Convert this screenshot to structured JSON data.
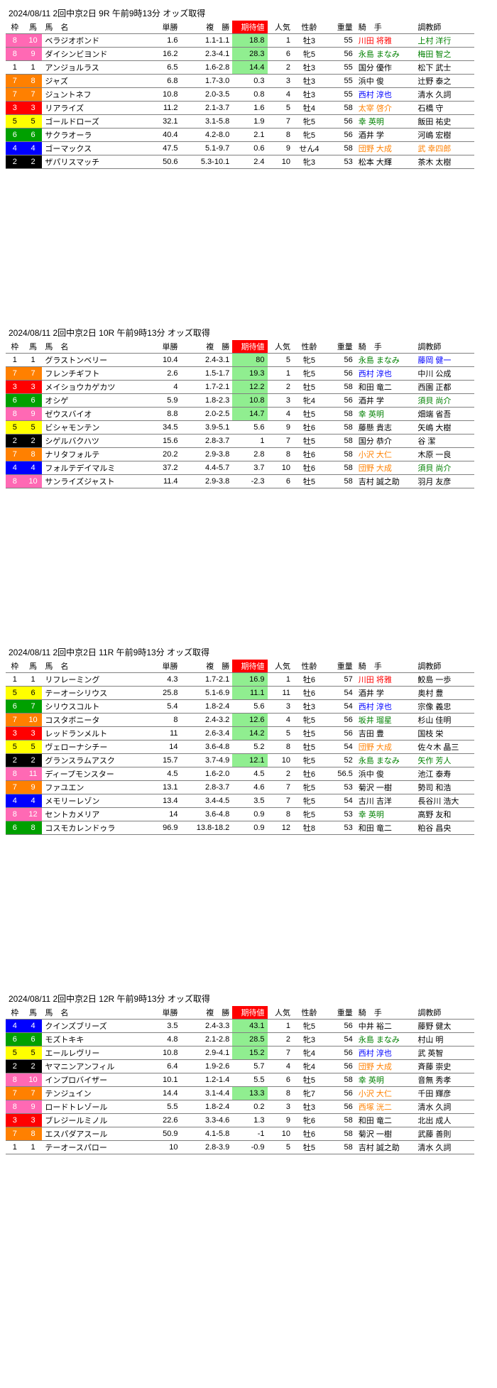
{
  "headers": {
    "waku": "枠",
    "uma": "馬",
    "name": "馬　名",
    "tansho": "単勝",
    "fuku": "複　勝",
    "exp": "期待値",
    "ninki": "人気",
    "seirei": "性齢",
    "juryo": "重量",
    "kishu": "騎　手",
    "chokyoshi": "調教師"
  },
  "races": [
    {
      "title": "2024/08/11  2回中京2日   9R   午前9時13分 オッズ取得",
      "rows": [
        {
          "waku": 8,
          "uma": 10,
          "name": "ベラジオボンド",
          "tansho": "1.6",
          "fuku": "1.1-1.1",
          "exp": "18.8",
          "ninki": 1,
          "seirei": "牡3",
          "juryo": 55,
          "kishu": "川田 将雅",
          "kcol": "name-red",
          "cho": "上村 洋行",
          "ccol": "name-green",
          "eg": 1
        },
        {
          "waku": 8,
          "uma": 9,
          "name": "ダイシンビヨンド",
          "tansho": "16.2",
          "fuku": "2.3-4.1",
          "exp": "28.3",
          "ninki": 6,
          "seirei": "牝5",
          "juryo": 56,
          "kishu": "永島 まなみ",
          "kcol": "name-green",
          "cho": "梅田 智之",
          "ccol": "name-green",
          "eg": 1
        },
        {
          "waku": 1,
          "uma": 1,
          "name": "アンジョルラス",
          "tansho": "6.5",
          "fuku": "1.6-2.8",
          "exp": "14.4",
          "ninki": 2,
          "seirei": "牡3",
          "juryo": 55,
          "kishu": "国分 優作",
          "cho": "松下 武士",
          "eg": 1
        },
        {
          "waku": 7,
          "uma": 8,
          "name": "ジャズ",
          "tansho": "6.8",
          "fuku": "1.7-3.0",
          "exp": "0.3",
          "ninki": 3,
          "seirei": "牡3",
          "juryo": 55,
          "kishu": "浜中 俊",
          "cho": "辻野 泰之"
        },
        {
          "waku": 7,
          "uma": 7,
          "name": "ジュントネフ",
          "tansho": "10.8",
          "fuku": "2.0-3.5",
          "exp": "0.8",
          "ninki": 4,
          "seirei": "牡3",
          "juryo": 55,
          "kishu": "西村 淳也",
          "kcol": "name-blue",
          "cho": "清水 久詞"
        },
        {
          "waku": 3,
          "uma": 3,
          "name": "リアライズ",
          "tansho": "11.2",
          "fuku": "2.1-3.7",
          "exp": "1.6",
          "ninki": 5,
          "seirei": "牡4",
          "juryo": 58,
          "kishu": "太宰 啓介",
          "kcol": "name-orange",
          "cho": "石橋 守"
        },
        {
          "waku": 5,
          "uma": 5,
          "name": "ゴールドローズ",
          "tansho": "32.1",
          "fuku": "3.1-5.8",
          "exp": "1.9",
          "ninki": 7,
          "seirei": "牝5",
          "juryo": 56,
          "kishu": "幸 英明",
          "kcol": "name-green",
          "cho": "飯田 祐史"
        },
        {
          "waku": 6,
          "uma": 6,
          "name": "サクラオーラ",
          "tansho": "40.4",
          "fuku": "4.2-8.0",
          "exp": "2.1",
          "ninki": 8,
          "seirei": "牝5",
          "juryo": 56,
          "kishu": "酒井 学",
          "cho": "河嶋 宏樹"
        },
        {
          "waku": 4,
          "uma": 4,
          "name": "ゴーマックス",
          "tansho": "47.5",
          "fuku": "5.1-9.7",
          "exp": "0.6",
          "ninki": 9,
          "seirei": "せん4",
          "juryo": 58,
          "kishu": "団野 大成",
          "kcol": "name-orange",
          "cho": "武 幸四郎",
          "ccol": "name-orange"
        },
        {
          "waku": 2,
          "uma": 2,
          "name": "ザパリスマッチ",
          "tansho": "50.6",
          "fuku": "5.3-10.1",
          "exp": "2.4",
          "ninki": 10,
          "seirei": "牝3",
          "juryo": 53,
          "kishu": "松本 大輝",
          "cho": "茶木 太樹"
        }
      ]
    },
    {
      "title": "2024/08/11  2回中京2日   10R   午前9時13分 オッズ取得",
      "rows": [
        {
          "waku": 1,
          "uma": 1,
          "name": "グラストンベリー",
          "tansho": "10.4",
          "fuku": "2.4-3.1",
          "exp": "80",
          "ninki": 5,
          "seirei": "牝5",
          "juryo": 56,
          "kishu": "永島 まなみ",
          "kcol": "name-green",
          "cho": "藤岡 健一",
          "ccol": "name-blue",
          "eg": 1
        },
        {
          "waku": 7,
          "uma": 7,
          "name": "フレンチギフト",
          "tansho": "2.6",
          "fuku": "1.5-1.7",
          "exp": "19.3",
          "ninki": 1,
          "seirei": "牝5",
          "juryo": 56,
          "kishu": "西村 淳也",
          "kcol": "name-blue",
          "cho": "中川 公成",
          "eg": 1
        },
        {
          "waku": 3,
          "uma": 3,
          "name": "メイショウカゲカツ",
          "tansho": "4",
          "fuku": "1.7-2.1",
          "exp": "12.2",
          "ninki": 2,
          "seirei": "牡5",
          "juryo": 58,
          "kishu": "和田 竜二",
          "cho": "西園 正都",
          "eg": 1
        },
        {
          "waku": 6,
          "uma": 6,
          "name": "オシゲ",
          "tansho": "5.9",
          "fuku": "1.8-2.3",
          "exp": "10.8",
          "ninki": 3,
          "seirei": "牝4",
          "juryo": 56,
          "kishu": "酒井 学",
          "cho": "須貝 尚介",
          "ccol": "name-green",
          "eg": 1
        },
        {
          "waku": 8,
          "uma": 9,
          "name": "ゼウスバイオ",
          "tansho": "8.8",
          "fuku": "2.0-2.5",
          "exp": "14.7",
          "ninki": 4,
          "seirei": "牡5",
          "juryo": 58,
          "kishu": "幸 英明",
          "kcol": "name-green",
          "cho": "畑端 省吾",
          "eg": 1
        },
        {
          "waku": 5,
          "uma": 5,
          "name": "ビシャモンテン",
          "tansho": "34.5",
          "fuku": "3.9-5.1",
          "exp": "5.6",
          "ninki": 9,
          "seirei": "牡6",
          "juryo": 58,
          "kishu": "藤懸 貴志",
          "cho": "矢嶋 大樹"
        },
        {
          "waku": 2,
          "uma": 2,
          "name": "シゲルバクハツ",
          "tansho": "15.6",
          "fuku": "2.8-3.7",
          "exp": "1",
          "ninki": 7,
          "seirei": "牡5",
          "juryo": 58,
          "kishu": "国分 恭介",
          "cho": "谷 潔"
        },
        {
          "waku": 7,
          "uma": 8,
          "name": "ナリタフォルテ",
          "tansho": "20.2",
          "fuku": "2.9-3.8",
          "exp": "2.8",
          "ninki": 8,
          "seirei": "牡6",
          "juryo": 58,
          "kishu": "小沢 大仁",
          "kcol": "name-orange",
          "cho": "木原 一良"
        },
        {
          "waku": 4,
          "uma": 4,
          "name": "フォルテデイマルミ",
          "tansho": "37.2",
          "fuku": "4.4-5.7",
          "exp": "3.7",
          "ninki": 10,
          "seirei": "牡6",
          "juryo": 58,
          "kishu": "団野 大成",
          "kcol": "name-orange",
          "cho": "須貝 尚介",
          "ccol": "name-green"
        },
        {
          "waku": 8,
          "uma": 10,
          "name": "サンライズジャスト",
          "tansho": "11.4",
          "fuku": "2.9-3.8",
          "exp": "-2.3",
          "ninki": 6,
          "seirei": "牡5",
          "juryo": 58,
          "kishu": "吉村 誠之助",
          "cho": "羽月 友彦"
        }
      ]
    },
    {
      "title": "2024/08/11  2回中京2日   11R   午前9時13分 オッズ取得",
      "rows": [
        {
          "waku": 1,
          "uma": 1,
          "name": "リフレーミング",
          "tansho": "4.3",
          "fuku": "1.7-2.1",
          "exp": "16.9",
          "ninki": 1,
          "seirei": "牡6",
          "juryo": 57,
          "kishu": "川田 将雅",
          "kcol": "name-red",
          "cho": "鮫島 一歩",
          "eg": 1
        },
        {
          "waku": 5,
          "uma": 6,
          "name": "テーオーシリウス",
          "tansho": "25.8",
          "fuku": "5.1-6.9",
          "exp": "11.1",
          "ninki": 11,
          "seirei": "牡6",
          "juryo": 54,
          "kishu": "酒井 学",
          "cho": "奥村 豊",
          "eg": 1
        },
        {
          "waku": 6,
          "uma": 7,
          "name": "シリウスコルト",
          "tansho": "5.4",
          "fuku": "1.8-2.4",
          "exp": "5.6",
          "ninki": 3,
          "seirei": "牡3",
          "juryo": 54,
          "kishu": "西村 淳也",
          "kcol": "name-blue",
          "cho": "宗像 義忠"
        },
        {
          "waku": 7,
          "uma": 10,
          "name": "コスタボニータ",
          "tansho": "8",
          "fuku": "2.4-3.2",
          "exp": "12.6",
          "ninki": 4,
          "seirei": "牝5",
          "juryo": 56,
          "kishu": "坂井 瑠星",
          "kcol": "name-green",
          "cho": "杉山 佳明",
          "eg": 1
        },
        {
          "waku": 3,
          "uma": 3,
          "name": "レッドランメルト",
          "tansho": "11",
          "fuku": "2.6-3.4",
          "exp": "14.2",
          "ninki": 5,
          "seirei": "牡5",
          "juryo": 56,
          "kishu": "吉田 豊",
          "cho": "国枝 栄",
          "eg": 1
        },
        {
          "waku": 5,
          "uma": 5,
          "name": "ヴェローナシチー",
          "tansho": "14",
          "fuku": "3.6-4.8",
          "exp": "5.2",
          "ninki": 8,
          "seirei": "牡5",
          "juryo": 54,
          "kishu": "団野 大成",
          "kcol": "name-orange",
          "cho": "佐々木 晶三"
        },
        {
          "waku": 2,
          "uma": 2,
          "name": "グランスラムアスク",
          "tansho": "15.7",
          "fuku": "3.7-4.9",
          "exp": "12.1",
          "ninki": 10,
          "seirei": "牝5",
          "juryo": 52,
          "kishu": "永島 まなみ",
          "kcol": "name-green",
          "cho": "矢作 芳人",
          "ccol": "name-green",
          "eg": 1
        },
        {
          "waku": 8,
          "uma": 11,
          "name": "ディープモンスター",
          "tansho": "4.5",
          "fuku": "1.6-2.0",
          "exp": "4.5",
          "ninki": 2,
          "seirei": "牡6",
          "juryo": 56.5,
          "kishu": "浜中 俊",
          "cho": "池江 泰寿"
        },
        {
          "waku": 7,
          "uma": 9,
          "name": "ファユエン",
          "tansho": "13.1",
          "fuku": "2.8-3.7",
          "exp": "4.6",
          "ninki": 7,
          "seirei": "牝5",
          "juryo": 53,
          "kishu": "菊沢 一樹",
          "cho": "勢司 和浩"
        },
        {
          "waku": 4,
          "uma": 4,
          "name": "メモリーレゾン",
          "tansho": "13.4",
          "fuku": "3.4-4.5",
          "exp": "3.5",
          "ninki": 7,
          "seirei": "牝5",
          "juryo": 54,
          "kishu": "古川 吉洋",
          "cho": "長谷川 浩大"
        },
        {
          "waku": 8,
          "uma": 12,
          "name": "セントカメリア",
          "tansho": "14",
          "fuku": "3.6-4.8",
          "exp": "0.9",
          "ninki": 8,
          "seirei": "牝5",
          "juryo": 53,
          "kishu": "幸 英明",
          "kcol": "name-green",
          "cho": "高野 友和"
        },
        {
          "waku": 6,
          "uma": 8,
          "name": "コスモカレンドゥラ",
          "tansho": "96.9",
          "fuku": "13.8-18.2",
          "exp": "0.9",
          "ninki": 12,
          "seirei": "牡8",
          "juryo": 53,
          "kishu": "和田 竜二",
          "cho": "粕谷 昌央"
        }
      ]
    },
    {
      "title": "2024/08/11  2回中京2日   12R   午前9時13分 オッズ取得",
      "rows": [
        {
          "waku": 4,
          "uma": 4,
          "name": "クインズブリーズ",
          "tansho": "3.5",
          "fuku": "2.4-3.3",
          "exp": "43.1",
          "ninki": 1,
          "seirei": "牝5",
          "juryo": 56,
          "kishu": "中井 裕二",
          "cho": "藤野 健太",
          "eg": 1
        },
        {
          "waku": 6,
          "uma": 6,
          "name": "モズトキキ",
          "tansho": "4.8",
          "fuku": "2.1-2.8",
          "exp": "28.5",
          "ninki": 2,
          "seirei": "牝3",
          "juryo": 54,
          "kishu": "永島 まなみ",
          "kcol": "name-green",
          "cho": "村山 明",
          "eg": 1
        },
        {
          "waku": 5,
          "uma": 5,
          "name": "エールレヴリー",
          "tansho": "10.8",
          "fuku": "2.9-4.1",
          "exp": "15.2",
          "ninki": 7,
          "seirei": "牝4",
          "juryo": 56,
          "kishu": "西村 淳也",
          "kcol": "name-blue",
          "cho": "武 英智",
          "eg": 1
        },
        {
          "waku": 2,
          "uma": 2,
          "name": "ヤマニンアンフィル",
          "tansho": "6.4",
          "fuku": "1.9-2.6",
          "exp": "5.7",
          "ninki": 4,
          "seirei": "牝4",
          "juryo": 56,
          "kishu": "団野 大成",
          "kcol": "name-orange",
          "cho": "斉藤 崇史"
        },
        {
          "waku": 8,
          "uma": 10,
          "name": "インプロバイザー",
          "tansho": "10.1",
          "fuku": "1.2-1.4",
          "exp": "5.5",
          "ninki": 6,
          "seirei": "牡5",
          "juryo": 58,
          "kishu": "幸 英明",
          "kcol": "name-green",
          "cho": "音無 秀孝"
        },
        {
          "waku": 7,
          "uma": 7,
          "name": "テンジュイン",
          "tansho": "14.4",
          "fuku": "3.1-4.4",
          "exp": "13.3",
          "ninki": 8,
          "seirei": "牝7",
          "juryo": 56,
          "kishu": "小沢 大仁",
          "kcol": "name-orange",
          "cho": "千田 輝彦",
          "eg": 1
        },
        {
          "waku": 8,
          "uma": 9,
          "name": "ロードトレゾール",
          "tansho": "5.5",
          "fuku": "1.8-2.4",
          "exp": "0.2",
          "ninki": 3,
          "seirei": "牡3",
          "juryo": 56,
          "kishu": "西塚 洸二",
          "kcol": "name-orange",
          "cho": "清水 久詞"
        },
        {
          "waku": 3,
          "uma": 3,
          "name": "ブレジールミノル",
          "tansho": "22.6",
          "fuku": "3.3-4.6",
          "exp": "1.3",
          "ninki": 9,
          "seirei": "牝6",
          "juryo": 58,
          "kishu": "和田 竜二",
          "cho": "北出 成人"
        },
        {
          "waku": 7,
          "uma": 8,
          "name": "エスパダアスール",
          "tansho": "50.9",
          "fuku": "4.1-5.8",
          "exp": "-1",
          "ninki": 10,
          "seirei": "牡6",
          "juryo": 58,
          "kishu": "菊沢 一樹",
          "cho": "武藤 善則"
        },
        {
          "waku": 1,
          "uma": 1,
          "name": "テーオースパロー",
          "tansho": "10",
          "fuku": "2.8-3.9",
          "exp": "-0.9",
          "ninki": 5,
          "seirei": "牡5",
          "juryo": 58,
          "kishu": "吉村 誠之助",
          "cho": "清水 久詞"
        }
      ]
    }
  ]
}
